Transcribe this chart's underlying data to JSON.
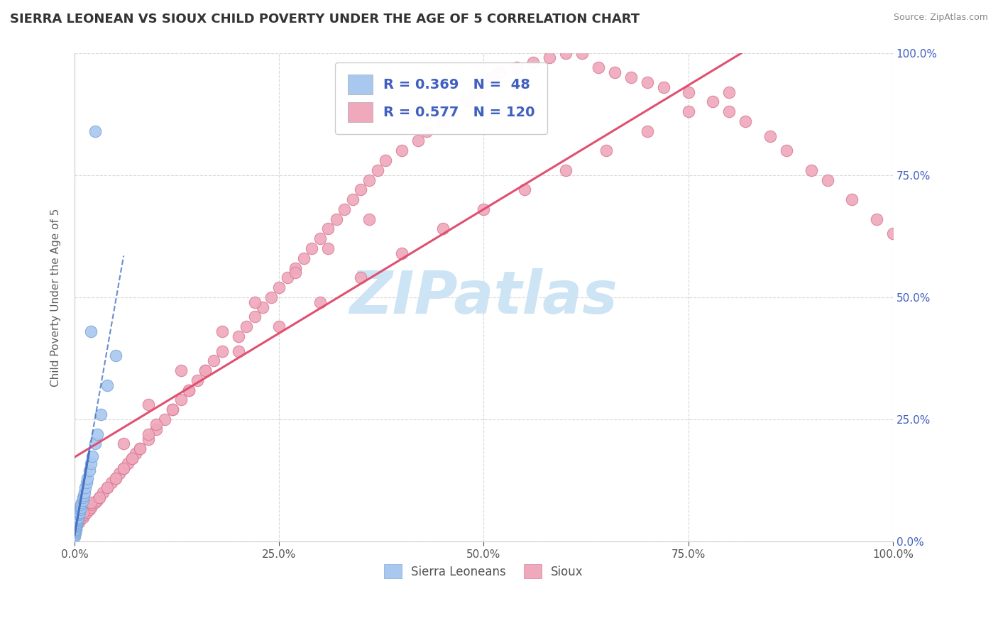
{
  "title": "SIERRA LEONEAN VS SIOUX CHILD POVERTY UNDER THE AGE OF 5 CORRELATION CHART",
  "source": "Source: ZipAtlas.com",
  "ylabel": "Child Poverty Under the Age of 5",
  "watermark": "ZIPatlas",
  "legend_labels": [
    "Sierra Leoneans",
    "Sioux"
  ],
  "blue_R": 0.369,
  "blue_N": 48,
  "pink_R": 0.577,
  "pink_N": 120,
  "blue_color": "#a8c8f0",
  "pink_color": "#f0a8bc",
  "blue_edge": "#80a8d8",
  "pink_edge": "#d88098",
  "blue_line_color": "#4472c4",
  "pink_line_color": "#e05070",
  "blue_scatter_x": [
    0.0,
    0.0,
    0.001,
    0.001,
    0.001,
    0.001,
    0.001,
    0.002,
    0.002,
    0.002,
    0.002,
    0.002,
    0.003,
    0.003,
    0.003,
    0.003,
    0.003,
    0.004,
    0.004,
    0.004,
    0.004,
    0.005,
    0.005,
    0.005,
    0.006,
    0.006,
    0.007,
    0.007,
    0.008,
    0.008,
    0.009,
    0.01,
    0.01,
    0.011,
    0.012,
    0.013,
    0.015,
    0.016,
    0.018,
    0.02,
    0.022,
    0.025,
    0.028,
    0.032,
    0.04,
    0.05,
    0.02,
    0.025
  ],
  "blue_scatter_y": [
    0.01,
    0.015,
    0.018,
    0.02,
    0.022,
    0.025,
    0.025,
    0.025,
    0.028,
    0.03,
    0.032,
    0.035,
    0.035,
    0.038,
    0.04,
    0.042,
    0.045,
    0.045,
    0.048,
    0.05,
    0.055,
    0.055,
    0.058,
    0.06,
    0.06,
    0.065,
    0.065,
    0.07,
    0.07,
    0.075,
    0.08,
    0.085,
    0.09,
    0.095,
    0.1,
    0.11,
    0.12,
    0.13,
    0.145,
    0.16,
    0.175,
    0.2,
    0.22,
    0.26,
    0.32,
    0.38,
    0.43,
    0.84
  ],
  "pink_scatter_x": [
    0.0,
    0.001,
    0.002,
    0.003,
    0.005,
    0.007,
    0.008,
    0.01,
    0.012,
    0.015,
    0.018,
    0.02,
    0.022,
    0.025,
    0.028,
    0.03,
    0.035,
    0.04,
    0.045,
    0.05,
    0.055,
    0.06,
    0.065,
    0.07,
    0.075,
    0.08,
    0.09,
    0.1,
    0.11,
    0.12,
    0.13,
    0.14,
    0.15,
    0.16,
    0.17,
    0.18,
    0.2,
    0.21,
    0.22,
    0.23,
    0.24,
    0.25,
    0.26,
    0.27,
    0.28,
    0.29,
    0.3,
    0.31,
    0.32,
    0.33,
    0.34,
    0.35,
    0.36,
    0.37,
    0.38,
    0.4,
    0.42,
    0.43,
    0.45,
    0.46,
    0.48,
    0.49,
    0.5,
    0.51,
    0.52,
    0.54,
    0.56,
    0.58,
    0.6,
    0.62,
    0.64,
    0.66,
    0.68,
    0.7,
    0.72,
    0.75,
    0.78,
    0.8,
    0.82,
    0.85,
    0.87,
    0.9,
    0.92,
    0.95,
    0.98,
    1.0,
    0.06,
    0.09,
    0.13,
    0.18,
    0.22,
    0.27,
    0.31,
    0.36,
    0.01,
    0.02,
    0.03,
    0.04,
    0.05,
    0.06,
    0.07,
    0.08,
    0.09,
    0.1,
    0.12,
    0.14,
    0.16,
    0.2,
    0.25,
    0.3,
    0.35,
    0.4,
    0.45,
    0.5,
    0.55,
    0.6,
    0.65,
    0.7,
    0.75,
    0.8
  ],
  "pink_scatter_y": [
    0.02,
    0.025,
    0.03,
    0.035,
    0.04,
    0.045,
    0.048,
    0.05,
    0.055,
    0.06,
    0.065,
    0.07,
    0.075,
    0.08,
    0.085,
    0.09,
    0.1,
    0.11,
    0.12,
    0.13,
    0.14,
    0.15,
    0.16,
    0.17,
    0.18,
    0.19,
    0.21,
    0.23,
    0.25,
    0.27,
    0.29,
    0.31,
    0.33,
    0.35,
    0.37,
    0.39,
    0.42,
    0.44,
    0.46,
    0.48,
    0.5,
    0.52,
    0.54,
    0.56,
    0.58,
    0.6,
    0.62,
    0.64,
    0.66,
    0.68,
    0.7,
    0.72,
    0.74,
    0.76,
    0.78,
    0.8,
    0.82,
    0.84,
    0.86,
    0.88,
    0.9,
    0.92,
    0.94,
    0.95,
    0.96,
    0.97,
    0.98,
    0.99,
    1.0,
    1.0,
    0.97,
    0.96,
    0.95,
    0.94,
    0.93,
    0.92,
    0.9,
    0.88,
    0.86,
    0.83,
    0.8,
    0.76,
    0.74,
    0.7,
    0.66,
    0.63,
    0.2,
    0.28,
    0.35,
    0.43,
    0.49,
    0.55,
    0.6,
    0.66,
    0.06,
    0.08,
    0.09,
    0.11,
    0.13,
    0.15,
    0.17,
    0.19,
    0.22,
    0.24,
    0.27,
    0.31,
    0.35,
    0.39,
    0.44,
    0.49,
    0.54,
    0.59,
    0.64,
    0.68,
    0.72,
    0.76,
    0.8,
    0.84,
    0.88,
    0.92
  ],
  "xlim": [
    0.0,
    1.0
  ],
  "ylim": [
    0.0,
    1.0
  ],
  "xticks": [
    0.0,
    0.25,
    0.5,
    0.75,
    1.0
  ],
  "yticks": [
    0.0,
    0.25,
    0.5,
    0.75,
    1.0
  ],
  "xticklabels": [
    "0.0%",
    "25.0%",
    "50.0%",
    "75.0%",
    "100.0%"
  ],
  "yticklabels_right": [
    "0.0%",
    "25.0%",
    "50.0%",
    "75.0%",
    "100.0%"
  ],
  "title_fontsize": 13,
  "axis_fontsize": 11,
  "tick_fontsize": 11,
  "legend_fontsize": 14,
  "watermark_fontsize": 60,
  "watermark_color": "#cce4f4",
  "background_color": "#ffffff",
  "grid_color": "#d8d8d8",
  "tick_color": "#4060c0",
  "axis_label_color": "#606060"
}
